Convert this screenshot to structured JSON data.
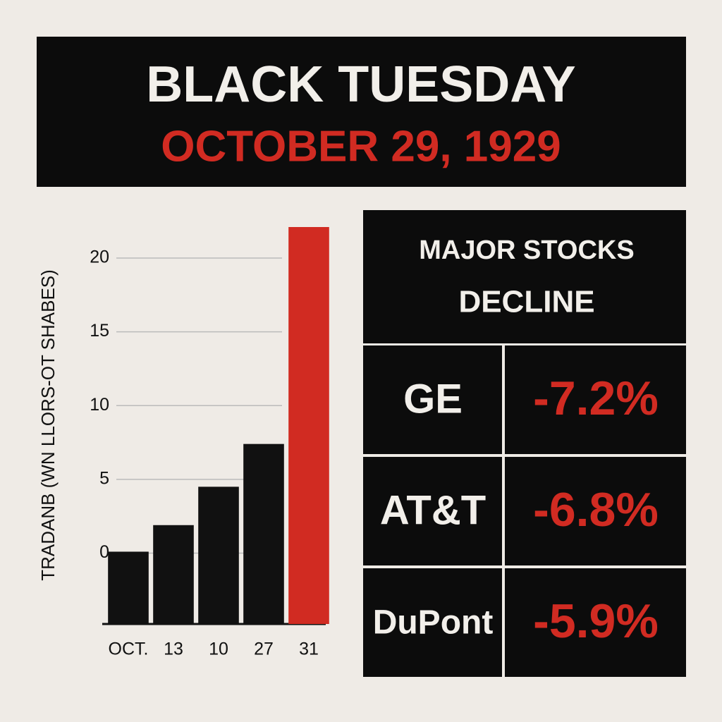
{
  "header": {
    "title": "BLACK TUESDAY",
    "subtitle": "OCTOBER 29, 1929"
  },
  "chart_data": {
    "type": "bar",
    "y_label": "TRADANB (WN LLORS-OT SHABES)",
    "categories": [
      "OCT.",
      "13",
      "10",
      "27",
      "31"
    ],
    "series": [
      {
        "name": null,
        "values": [
          0.1,
          1.9,
          4.5,
          7.4,
          22.1
        ],
        "colors": [
          "#111111",
          "#111111",
          "#111111",
          "#111111",
          "#d12b22"
        ]
      }
    ],
    "ylim": [
      -4.8,
      22.1
    ],
    "yticks": [
      0,
      5,
      10,
      15,
      20
    ],
    "grid": true
  },
  "table": {
    "title": "MAJOR STOCKS",
    "subtitle": "DECLINE",
    "rows": [
      [
        "GE",
        "-7.2%"
      ],
      [
        "AT&T",
        "-6.8%"
      ],
      [
        "DuPont",
        "-5.9%"
      ]
    ]
  }
}
